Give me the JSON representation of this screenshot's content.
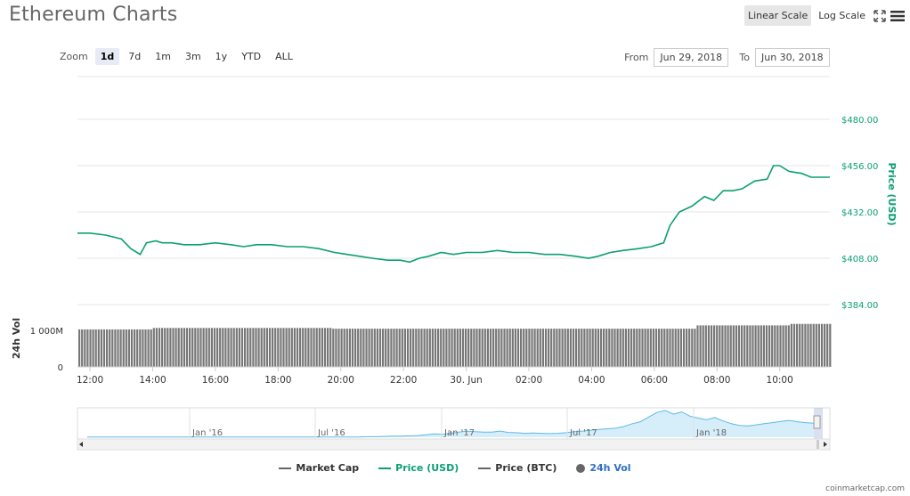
{
  "header": {
    "title": "Ethereum Charts",
    "linear_scale_label": "Linear Scale",
    "log_scale_label": "Log Scale",
    "fullscreen_icon": "expand-icon",
    "menu_icon": "hamburger-menu-icon"
  },
  "zoom": {
    "label": "Zoom",
    "options": [
      "1d",
      "7d",
      "1m",
      "3m",
      "1y",
      "YTD",
      "ALL"
    ],
    "selected": "1d"
  },
  "range": {
    "from_label": "From",
    "from_value": "Jun 29, 2018",
    "to_label": "To",
    "to_value": "Jun 30, 2018"
  },
  "chart_data": {
    "type": "line",
    "title": "Ethereum Charts",
    "price_axis_label": "Price (USD)",
    "price_ticks": [
      "$480.00",
      "$456.00",
      "$432.00",
      "$408.00",
      "$384.00"
    ],
    "price_tick_values": [
      480,
      456,
      432,
      408,
      384
    ],
    "ylim": [
      384,
      480
    ],
    "volume_axis_label": "24h Vol",
    "volume_ticks": [
      "1 000M",
      "0"
    ],
    "volume_tick_values": [
      1000,
      0
    ],
    "volume_ylim": [
      0,
      1600
    ],
    "x_ticks": [
      "12:00",
      "14:00",
      "16:00",
      "18:00",
      "20:00",
      "22:00",
      "30. Jun",
      "02:00",
      "04:00",
      "06:00",
      "08:00",
      "10:00"
    ],
    "x_tick_hours": [
      12,
      14,
      16,
      18,
      20,
      22,
      24,
      26,
      28,
      30,
      32,
      34
    ],
    "xlim_hours": [
      11.6,
      35.6
    ],
    "series": [
      {
        "name": "Price (USD)",
        "color": "#0b9f73",
        "x": [
          11.6,
          12.0,
          12.5,
          13.0,
          13.3,
          13.6,
          13.8,
          14.1,
          14.3,
          14.6,
          15.0,
          15.5,
          16.0,
          16.5,
          16.9,
          17.3,
          17.8,
          18.3,
          18.8,
          19.3,
          19.8,
          20.2,
          20.6,
          21.0,
          21.5,
          21.9,
          22.2,
          22.5,
          22.8,
          23.2,
          23.6,
          24.0,
          24.5,
          25.0,
          25.5,
          26.0,
          26.5,
          27.0,
          27.5,
          27.9,
          28.2,
          28.6,
          29.0,
          29.5,
          29.9,
          30.3,
          30.5,
          30.8,
          31.2,
          31.6,
          31.9,
          32.2,
          32.5,
          32.8,
          33.2,
          33.6,
          33.8,
          34.0,
          34.3,
          34.7,
          35.0,
          35.3,
          35.6
        ],
        "y": [
          421,
          421,
          420,
          418,
          413,
          410,
          416,
          417,
          416,
          416,
          415,
          415,
          416,
          415,
          414,
          415,
          415,
          414,
          414,
          413,
          411,
          410,
          409,
          408,
          407,
          407,
          406,
          408,
          409,
          411,
          410,
          411,
          411,
          412,
          411,
          411,
          410,
          410,
          409,
          408,
          409,
          411,
          412,
          413,
          414,
          416,
          425,
          432,
          435,
          440,
          438,
          443,
          443,
          444,
          448,
          449,
          456,
          456,
          453,
          452,
          450,
          450,
          450
        ]
      },
      {
        "name": "24h Vol",
        "color": "#666666",
        "x": [
          11.6,
          13.8,
          14.0,
          19.5,
          19.7,
          31.0,
          31.3,
          34.0,
          34.3,
          35.6
        ],
        "y": [
          1020,
          1020,
          1060,
          1060,
          1040,
          1040,
          1130,
          1130,
          1170,
          1170
        ]
      }
    ],
    "navigator": {
      "x_ticks": [
        "Jan '16",
        "Jul '16",
        "Jan '17",
        "Jul '17",
        "Jan '18"
      ],
      "series_name": "Price (USD)",
      "values": [
        1,
        1,
        1,
        1,
        1,
        1,
        1,
        1,
        1,
        1,
        1,
        1,
        1,
        1,
        1,
        1,
        1,
        1,
        1,
        1,
        1,
        1,
        1,
        1,
        1,
        1,
        1,
        1,
        1,
        1,
        1,
        1,
        1,
        1,
        2,
        2,
        3,
        4,
        4,
        5,
        6,
        9,
        12,
        10,
        14,
        18,
        22,
        20,
        18,
        18,
        22,
        17,
        16,
        14,
        15,
        14,
        13,
        14,
        16,
        20,
        22,
        25,
        28,
        30,
        32,
        38,
        48,
        55,
        72,
        88,
        95,
        82,
        90,
        75,
        68,
        62,
        70,
        58,
        48,
        42,
        40,
        44,
        48,
        52,
        56,
        60,
        55,
        52,
        50
      ]
    },
    "legend": [
      {
        "label": "Market Cap",
        "color": "#666666",
        "marker": "line"
      },
      {
        "label": "Price (USD)",
        "color": "#0b9f73",
        "marker": "line"
      },
      {
        "label": "Price (BTC)",
        "color": "#666666",
        "marker": "line"
      },
      {
        "label": "24h Vol",
        "color": "#666666",
        "marker": "dot"
      }
    ]
  },
  "footer": {
    "credit": "coinmarketcap.com"
  }
}
